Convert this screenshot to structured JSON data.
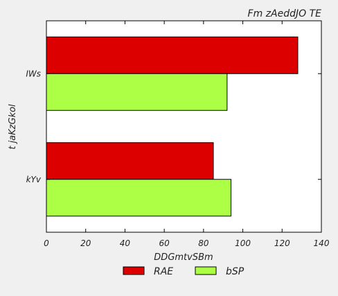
{
  "chart_data": {
    "type": "bar",
    "orientation": "horizontal",
    "title": "Fm zAeddJO TE",
    "xlabel": "DDGmtvSBm",
    "ylabel": "t jaKzGkol",
    "categories": [
      "kYv",
      "IWs"
    ],
    "series": [
      {
        "name": "RAE",
        "color": "#dd0000",
        "values": [
          85,
          128
        ]
      },
      {
        "name": "bSP",
        "color": "#adff45",
        "values": [
          94,
          92
        ]
      }
    ],
    "xlim": [
      0,
      140
    ],
    "xticks": [
      "0",
      "20",
      "40",
      "60",
      "80",
      "100",
      "120",
      "140"
    ],
    "grid": false,
    "legend_position": "bottom"
  }
}
